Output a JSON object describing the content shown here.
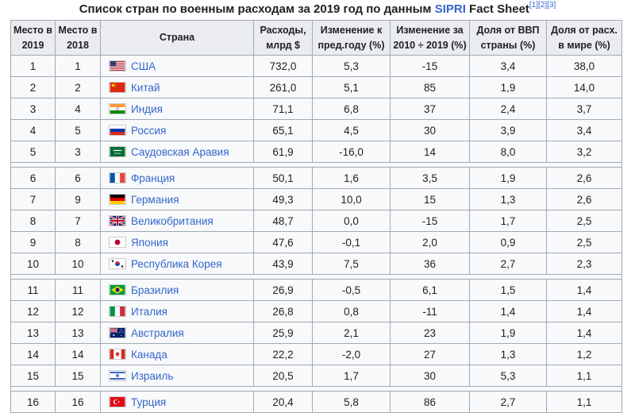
{
  "caption": {
    "text": "Список стран по военным расходам за 2019 год по данным ",
    "link": "SIPRI",
    "tail": " Fact Sheet",
    "refs": "[1][2][3]"
  },
  "headers": [
    "Место в 2019",
    "Место в 2018",
    "Страна",
    "Расходы, млрд $",
    "Изменение к пред.году (%)",
    "Изменение за 2010 ÷ 2019 (%)",
    "Доля от ВВП страны (%)",
    "Доля от расх. в мире (%)"
  ],
  "groups": [
    [
      {
        "r19": "1",
        "r18": "1",
        "country": "США",
        "flag": "us-flag-icon",
        "spend": "732,0",
        "chg": "5,3",
        "chg10": "-15",
        "gdp": "3,4",
        "world": "38,0"
      },
      {
        "r19": "2",
        "r18": "2",
        "country": "Китай",
        "flag": "china-flag-icon",
        "spend": "261,0",
        "chg": "5,1",
        "chg10": "85",
        "gdp": "1,9",
        "world": "14,0"
      },
      {
        "r19": "3",
        "r18": "4",
        "country": "Индия",
        "flag": "india-flag-icon",
        "spend": "71,1",
        "chg": "6,8",
        "chg10": "37",
        "gdp": "2,4",
        "world": "3,7"
      },
      {
        "r19": "4",
        "r18": "5",
        "country": "Россия",
        "flag": "russia-flag-icon",
        "spend": "65,1",
        "chg": "4,5",
        "chg10": "30",
        "gdp": "3,9",
        "world": "3,4"
      },
      {
        "r19": "5",
        "r18": "3",
        "country": "Саудовская Аравия",
        "flag": "saudi-flag-icon",
        "spend": "61,9",
        "chg": "-16,0",
        "chg10": "14",
        "gdp": "8,0",
        "world": "3,2"
      }
    ],
    [
      {
        "r19": "6",
        "r18": "6",
        "country": "Франция",
        "flag": "france-flag-icon",
        "spend": "50,1",
        "chg": "1,6",
        "chg10": "3,5",
        "gdp": "1,9",
        "world": "2,6"
      },
      {
        "r19": "7",
        "r18": "9",
        "country": "Германия",
        "flag": "germany-flag-icon",
        "spend": "49,3",
        "chg": "10,0",
        "chg10": "15",
        "gdp": "1,3",
        "world": "2,6"
      },
      {
        "r19": "8",
        "r18": "7",
        "country": "Великобритания",
        "flag": "uk-flag-icon",
        "spend": "48,7",
        "chg": "0,0",
        "chg10": "-15",
        "gdp": "1,7",
        "world": "2,5"
      },
      {
        "r19": "9",
        "r18": "8",
        "country": "Япония",
        "flag": "japan-flag-icon",
        "spend": "47,6",
        "chg": "-0,1",
        "chg10": "2,0",
        "gdp": "0,9",
        "world": "2,5"
      },
      {
        "r19": "10",
        "r18": "10",
        "country": "Республика Корея",
        "flag": "korea-flag-icon",
        "spend": "43,9",
        "chg": "7,5",
        "chg10": "36",
        "gdp": "2,7",
        "world": "2,3"
      }
    ],
    [
      {
        "r19": "11",
        "r18": "11",
        "country": "Бразилия",
        "flag": "brazil-flag-icon",
        "spend": "26,9",
        "chg": "-0,5",
        "chg10": "6,1",
        "gdp": "1,5",
        "world": "1,4"
      },
      {
        "r19": "12",
        "r18": "12",
        "country": "Италия",
        "flag": "italy-flag-icon",
        "spend": "26,8",
        "chg": "0,8",
        "chg10": "-11",
        "gdp": "1,4",
        "world": "1,4"
      },
      {
        "r19": "13",
        "r18": "13",
        "country": "Австралия",
        "flag": "australia-flag-icon",
        "spend": "25,9",
        "chg": "2,1",
        "chg10": "23",
        "gdp": "1,9",
        "world": "1,4"
      },
      {
        "r19": "14",
        "r18": "14",
        "country": "Канада",
        "flag": "canada-flag-icon",
        "spend": "22,2",
        "chg": "-2,0",
        "chg10": "27",
        "gdp": "1,3",
        "world": "1,2"
      },
      {
        "r19": "15",
        "r18": "15",
        "country": "Израиль",
        "flag": "israel-flag-icon",
        "spend": "20,5",
        "chg": "1,7",
        "chg10": "30",
        "gdp": "5,3",
        "world": "1,1"
      }
    ],
    [
      {
        "r19": "16",
        "r18": "16",
        "country": "Турция",
        "flag": "turkey-flag-icon",
        "spend": "20,4",
        "chg": "5,8",
        "chg10": "86",
        "gdp": "2,7",
        "world": "1,1"
      }
    ]
  ]
}
